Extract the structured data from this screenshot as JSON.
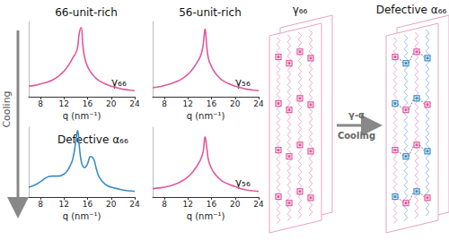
{
  "cooling_label": "Cooling",
  "chart_data": [
    {
      "type": "line",
      "title": "66-unit-rich",
      "annotation": "γ₆₆",
      "color": "#e0589c",
      "x": [
        6,
        7,
        8,
        9,
        10,
        11,
        12,
        12.5,
        13,
        13.5,
        14,
        14.3,
        14.6,
        14.9,
        15.2,
        15.5,
        16,
        16.5,
        17,
        17.5,
        18,
        19,
        20,
        21,
        22,
        23,
        24
      ],
      "values": [
        14,
        15,
        17,
        19,
        22,
        27,
        34,
        39,
        45,
        52,
        58,
        66,
        85,
        92,
        68,
        52,
        40,
        33,
        28,
        24,
        21,
        17,
        14,
        12,
        10,
        9,
        8
      ],
      "xlim": [
        6,
        24
      ],
      "xticks": [
        8,
        12,
        16,
        20,
        24
      ],
      "ylim": [
        0,
        100
      ],
      "x_label": "q (nm⁻¹)",
      "tick_labels": "x",
      "grid": false
    },
    {
      "type": "line",
      "title": "56-unit-rich",
      "annotation": "γ₅₆",
      "color": "#e0589c",
      "x": [
        6,
        7,
        8,
        9,
        10,
        11,
        12,
        12.5,
        13,
        13.5,
        14,
        14.3,
        14.6,
        14.9,
        15.2,
        15.5,
        16,
        16.5,
        17,
        17.5,
        18,
        19,
        20,
        21,
        22,
        23,
        24
      ],
      "values": [
        12,
        13,
        15,
        17,
        20,
        24,
        30,
        34,
        39,
        45,
        52,
        58,
        70,
        90,
        66,
        50,
        40,
        33,
        28,
        24,
        21,
        17,
        14,
        12,
        10,
        9,
        8
      ],
      "xlim": [
        6,
        24
      ],
      "xticks": [
        8,
        12,
        16,
        20,
        24
      ],
      "ylim": [
        0,
        100
      ],
      "x_label": "q (nm⁻¹)",
      "tick_labels": "x",
      "grid": false
    },
    {
      "type": "line",
      "annotation": "Defective α₆₆",
      "color": "#3a8cc6",
      "x": [
        6,
        7,
        8,
        9,
        10,
        11,
        12,
        12.5,
        13,
        13.5,
        14,
        14.3,
        14.6,
        14.9,
        15.2,
        15.5,
        16,
        16.5,
        17,
        17.5,
        18,
        19,
        20,
        21,
        22,
        23,
        24
      ],
      "values": [
        14,
        17,
        22,
        28,
        30,
        30,
        33,
        37,
        44,
        55,
        80,
        95,
        72,
        52,
        44,
        42,
        48,
        58,
        55,
        40,
        28,
        18,
        14,
        12,
        10,
        9,
        8
      ],
      "xlim": [
        6,
        24
      ],
      "xticks": [
        8,
        12,
        16,
        20,
        24
      ],
      "ylim": [
        0,
        100
      ],
      "x_label": "q (nm⁻¹)",
      "tick_labels": "x",
      "grid": false
    },
    {
      "type": "line",
      "annotation": "γ₅₆",
      "color": "#e0589c",
      "x": [
        6,
        7,
        8,
        9,
        10,
        11,
        12,
        12.5,
        13,
        13.5,
        14,
        14.3,
        14.6,
        14.9,
        15.2,
        15.5,
        16,
        16.5,
        17,
        17.5,
        18,
        19,
        20,
        21,
        22,
        23,
        24
      ],
      "values": [
        12,
        13,
        14,
        16,
        19,
        23,
        29,
        33,
        38,
        44,
        51,
        57,
        66,
        86,
        70,
        52,
        41,
        34,
        29,
        25,
        22,
        18,
        15,
        12,
        10,
        9,
        8
      ],
      "xlim": [
        6,
        24
      ],
      "xticks": [
        8,
        12,
        16,
        20,
        24
      ],
      "ylim": [
        0,
        100
      ],
      "x_label": "q (nm⁻¹)",
      "tick_labels": "x",
      "grid": false
    }
  ],
  "diagram": {
    "left_title": "γ₆₆",
    "right_title": "Defective α₆₆",
    "transition_top": "γ-α",
    "transition_bottom": "Cooling"
  }
}
